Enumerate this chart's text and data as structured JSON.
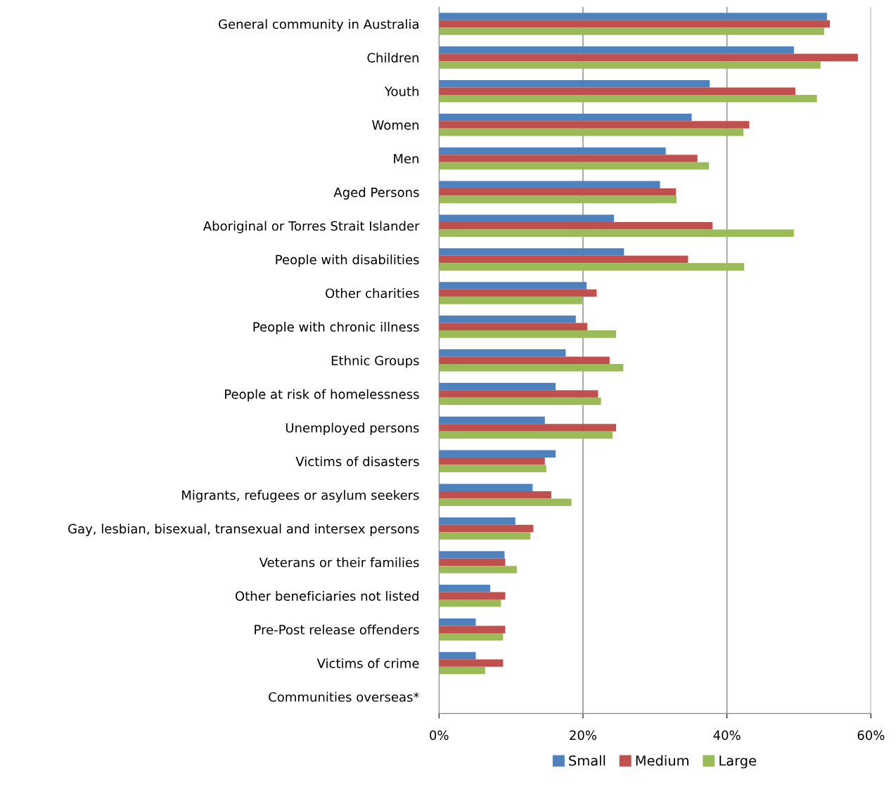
{
  "chart_data": {
    "type": "bar",
    "orientation": "horizontal",
    "categories": [
      "General community in Australia",
      "Children",
      "Youth",
      "Women",
      "Men",
      "Aged Persons",
      "Aboriginal or Torres Strait Islander",
      "People with disabilities",
      "Other charities",
      "People with chronic illness",
      "Ethnic Groups",
      "People at risk of homelessness",
      "Unemployed persons",
      "Victims of disasters",
      "Migrants, refugees or asylum seekers",
      "Gay, lesbian, bisexual, transexual and intersex persons",
      "Veterans or their families",
      "Other beneficiaries not listed",
      "Pre-Post release offenders",
      "Victims of crime",
      "Communities overseas*"
    ],
    "series": [
      {
        "name": "Small",
        "color": "#4f81bd",
        "values": [
          53.9,
          49.3,
          37.6,
          35.1,
          31.5,
          30.7,
          24.3,
          25.7,
          20.5,
          19.0,
          17.6,
          16.2,
          14.7,
          16.2,
          13.0,
          10.6,
          9.1,
          7.1,
          5.1,
          5.1,
          0
        ]
      },
      {
        "name": "Medium",
        "color": "#c0504d",
        "values": [
          54.3,
          58.2,
          49.5,
          43.1,
          35.9,
          32.9,
          38.0,
          34.6,
          21.9,
          20.6,
          23.7,
          22.1,
          24.6,
          14.7,
          15.6,
          13.1,
          9.2,
          9.2,
          9.2,
          8.9,
          0
        ]
      },
      {
        "name": "Large",
        "color": "#9bbb59",
        "values": [
          53.5,
          53.0,
          52.5,
          42.3,
          37.5,
          33.0,
          49.3,
          42.4,
          19.9,
          24.6,
          25.6,
          22.5,
          24.1,
          14.9,
          18.4,
          12.7,
          10.8,
          8.6,
          8.9,
          6.4,
          0
        ]
      }
    ],
    "xlim": [
      0,
      60
    ],
    "xticks": [
      {
        "value": 0,
        "label": "0%"
      },
      {
        "value": 20,
        "label": "20%"
      },
      {
        "value": 40,
        "label": "40%"
      },
      {
        "value": 60,
        "label": "60%"
      }
    ],
    "grid": "x",
    "legend": "bottom"
  }
}
